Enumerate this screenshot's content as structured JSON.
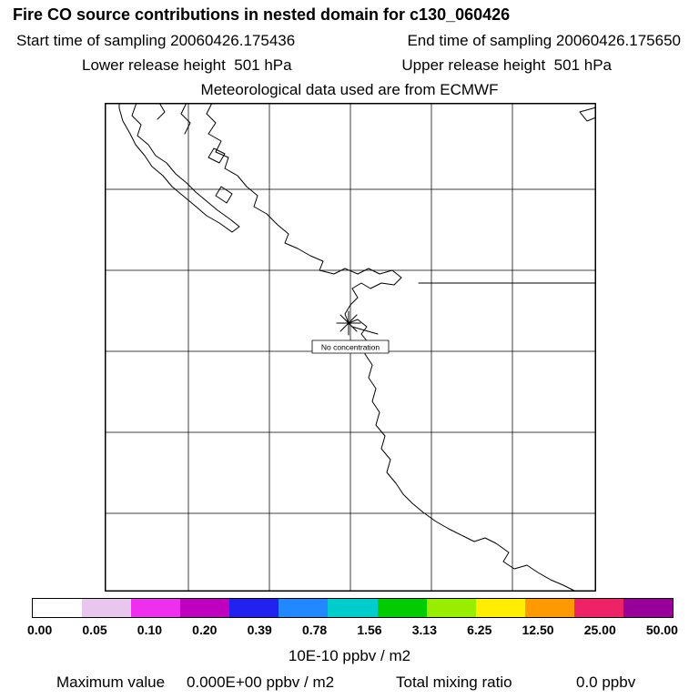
{
  "header": {
    "title": "Fire CO source contributions in nested domain for c130_060426",
    "start_time_text": "Start time of sampling 20060426.175436",
    "end_time_text": "End time of sampling 20060426.175650",
    "lower_release_text": "Lower release height  501 hPa",
    "upper_release_text": "Upper release height  501 hPa",
    "met_text": "Meteorological data used are from ECMWF"
  },
  "map": {
    "marker_label": "No concentration"
  },
  "colorbar": {
    "colors": [
      "#ffffff",
      "#e8c6ee",
      "#ee30ee",
      "#bf00bf",
      "#2222ee",
      "#2288ff",
      "#00cccc",
      "#00cc00",
      "#99ee00",
      "#ffee00",
      "#ff9900",
      "#ee2266",
      "#990099"
    ],
    "tick_labels": [
      "0.00",
      "0.05",
      "0.10",
      "0.20",
      "0.39",
      "0.78",
      "1.56",
      "3.13",
      "6.25",
      "12.50",
      "25.00",
      "50.00"
    ],
    "units_label": "10E-10 ppbv / m2"
  },
  "footer": {
    "max_label": "Maximum value",
    "max_value": "0.000E+00 ppbv / m2",
    "ratio_label": "Total mixing ratio",
    "ratio_value": "0.0 ppbv"
  },
  "chart_data": {
    "type": "heatmap",
    "title": "Fire CO source contributions in nested domain for c130_060426",
    "start_time_of_sampling": "20060426.175436",
    "end_time_of_sampling": "20060426.175650",
    "lower_release_height": "501 hPa",
    "upper_release_height": "501 hPa",
    "meteorological_data_source": "ECMWF",
    "colorbar_levels": [
      0.0,
      0.05,
      0.1,
      0.2,
      0.39,
      0.78,
      1.56,
      3.13,
      6.25,
      12.5,
      25.0,
      50.0
    ],
    "colorbar_units": "10E-10 ppbv / m2",
    "values": "no concentration field plotted (all zero)",
    "marker": {
      "symbol": "asterisk",
      "label": "No concentration",
      "location": "release point on Pacific Northwest coast"
    },
    "maximum_value": "0.000E+00 ppbv / m2",
    "total_mixing_ratio": "0.0 ppbv",
    "grid": "6x6 lat/lon graticule over coastal map, legend below as discrete colorbar"
  }
}
